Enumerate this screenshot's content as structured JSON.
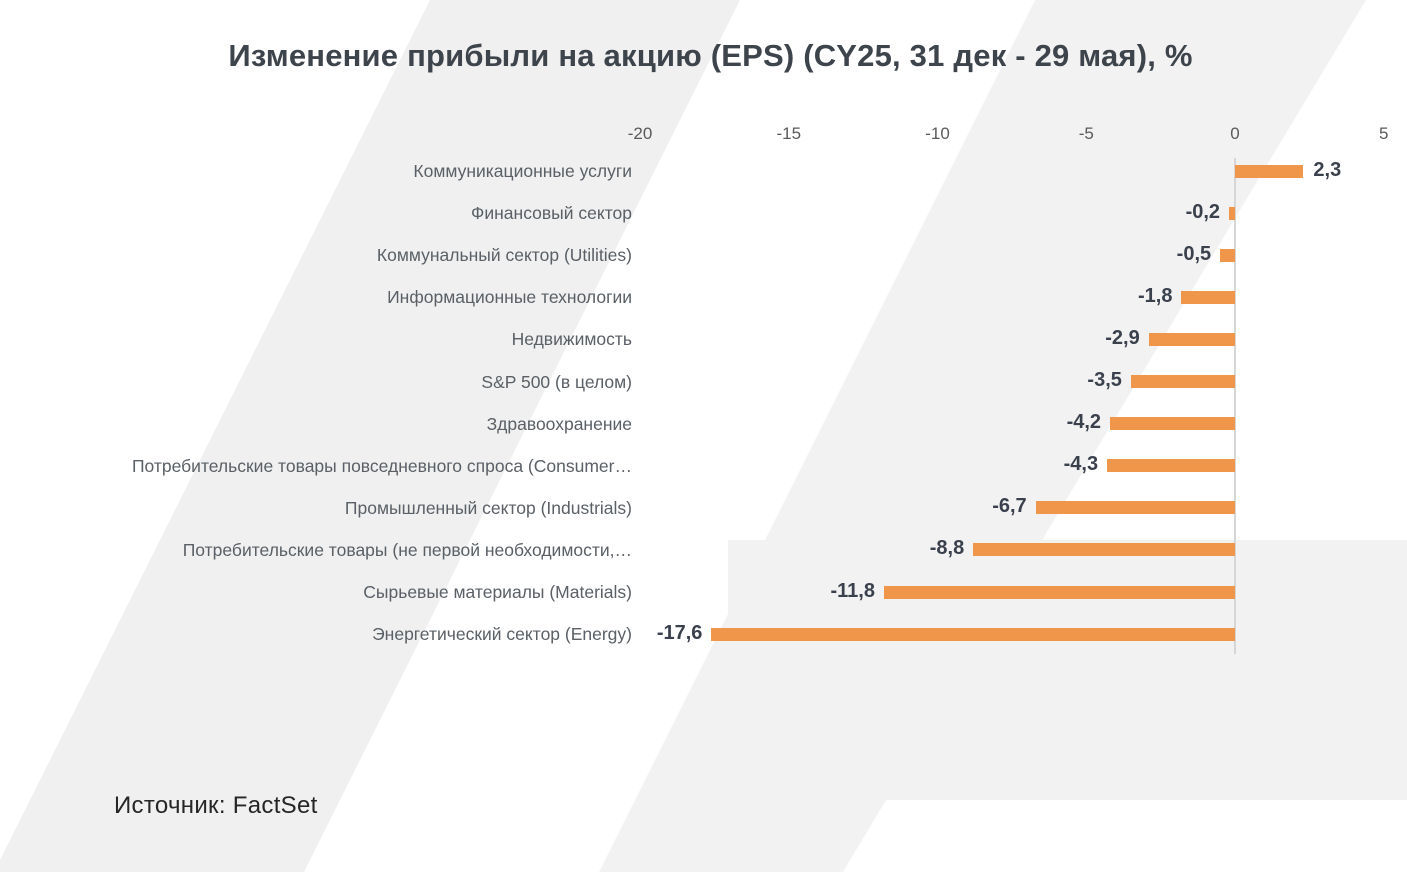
{
  "title": "Изменение прибыли на акцию (EPS) (CY25, 31 дек - 29 мая), %",
  "source": "Источник: FactSet",
  "chart_data": {
    "type": "bar",
    "orientation": "horizontal",
    "title": "Изменение прибыли на акцию (EPS) (CY25, 31 дек - 29 мая), %",
    "categories": [
      "Коммуникационные услуги",
      "Финансовый сектор",
      "Коммунальный сектор (Utilities)",
      "Информационные технологии",
      "Недвижимость",
      "S&P 500 (в целом)",
      "Здравоохранение",
      "Потребительские товары повседневного спроса (Consumer…",
      "Промышленный сектор (Industrials)",
      "Потребительские товары (не первой необходимости,…",
      "Сырьевые материалы (Materials)",
      "Энергетический сектор (Energy)"
    ],
    "values": [
      2.3,
      -0.2,
      -0.5,
      -1.8,
      -2.9,
      -3.5,
      -4.2,
      -4.3,
      -6.7,
      -8.8,
      -11.8,
      -17.6
    ],
    "value_labels": [
      "2,3",
      "-0,2",
      "-0,5",
      "-1,8",
      "-2,9",
      "-3,5",
      "-4,2",
      "-4,3",
      "-6,7",
      "-8,8",
      "-11,8",
      "-17,6"
    ],
    "x_ticks": [
      -20,
      -15,
      -10,
      -5,
      0,
      5
    ],
    "x_tick_labels": [
      "-20",
      "-15",
      "-10",
      "-5",
      "0",
      "5"
    ],
    "xlim": [
      -20,
      5
    ],
    "grid": false,
    "legend": false,
    "data_labels": "outside-end",
    "bar_color": "#f0964b",
    "axis_line_color": "#d6d6d6",
    "value_label_color": "#3a414d",
    "category_label_color": "#5a6066",
    "tick_label_color": "#595959",
    "watermark_color": "#f0f0f0"
  }
}
